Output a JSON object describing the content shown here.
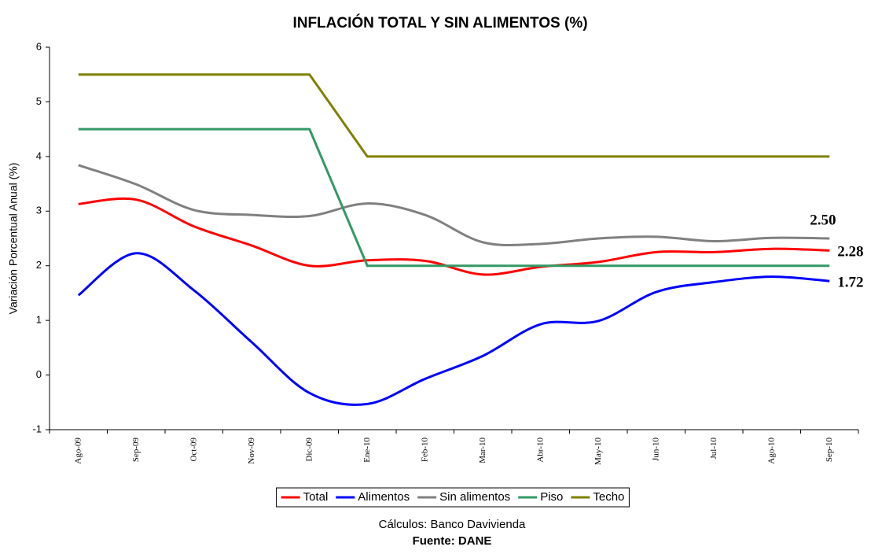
{
  "chart_data": {
    "type": "line",
    "title": "INFLACIÓN TOTAL Y SIN ALIMENTOS (%)",
    "y_label": "Variación Porcentual Anual (%)",
    "notes": [
      "Cálculos: Banco Davivienda",
      "Fuente: DANE"
    ],
    "categories": [
      "Ago-09",
      "Sep-09",
      "Oct-09",
      "Nov-09",
      "Dic-09",
      "Ene-10",
      "Feb-10",
      "Mar-10",
      "Abr-10",
      "May-10",
      "Jun-10",
      "Jul-10",
      "Ago-10",
      "Sep-10"
    ],
    "series": [
      {
        "name": "Total",
        "color": "#ff0000",
        "smooth": true,
        "values": [
          3.13,
          3.21,
          2.72,
          2.37,
          2.0,
          2.1,
          2.09,
          1.84,
          1.98,
          2.07,
          2.25,
          2.25,
          2.31,
          2.28
        ],
        "value_labels": [
          null,
          null,
          null,
          null,
          null,
          null,
          null,
          null,
          null,
          null,
          null,
          null,
          null,
          "2.28"
        ]
      },
      {
        "name": "Alimentos",
        "color": "#0000ff",
        "smooth": true,
        "values": [
          1.46,
          2.23,
          1.55,
          0.6,
          -0.33,
          -0.53,
          -0.07,
          0.35,
          0.93,
          0.99,
          1.52,
          1.7,
          1.8,
          1.72
        ],
        "value_labels": [
          null,
          null,
          null,
          null,
          null,
          null,
          null,
          null,
          null,
          null,
          null,
          null,
          null,
          "1.72"
        ]
      },
      {
        "name": "Sin alimentos",
        "color": "#808080",
        "smooth": true,
        "values": [
          3.84,
          3.49,
          3.02,
          2.93,
          2.91,
          3.14,
          2.93,
          2.43,
          2.4,
          2.5,
          2.53,
          2.45,
          2.51,
          2.5
        ],
        "value_labels": [
          null,
          null,
          null,
          null,
          null,
          null,
          null,
          null,
          null,
          null,
          null,
          null,
          null,
          "2.50"
        ]
      },
      {
        "name": "Piso",
        "color": "#339966",
        "smooth": false,
        "values": [
          4.5,
          4.5,
          4.5,
          4.5,
          4.5,
          2,
          2,
          2,
          2,
          2,
          2,
          2,
          2,
          2
        ]
      },
      {
        "name": "Techo",
        "color": "#808000",
        "smooth": false,
        "values": [
          5.5,
          5.5,
          5.5,
          5.5,
          5.5,
          4,
          4,
          4,
          4,
          4,
          4,
          4,
          4,
          4
        ]
      }
    ],
    "ylim": [
      -1,
      6
    ],
    "yticks": [
      -1,
      0,
      1,
      2,
      3,
      4,
      5,
      6
    ],
    "grid": false,
    "legend": "bottom"
  }
}
